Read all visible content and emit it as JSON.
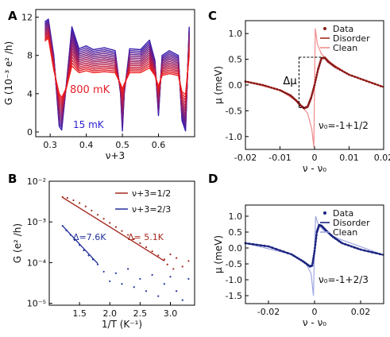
{
  "chart_data": [
    {
      "panel": "A",
      "type": "line",
      "xlabel": "ν+3",
      "ylabel": "G (10⁻³ e² /h)",
      "xlim": [
        0.26,
        0.7
      ],
      "ylim": [
        -0.5,
        12.8
      ],
      "xticks": [
        0.3,
        0.4,
        0.5,
        0.6
      ],
      "xtick_labels": [
        "0.3",
        "0.4",
        "0.5",
        "0.6"
      ],
      "yticks": [
        0,
        4,
        8,
        12
      ],
      "ytick_labels": [
        "0",
        "4",
        "8",
        "12"
      ],
      "annotations": [
        {
          "text": "800 mK",
          "color": "#e8202a"
        },
        {
          "text": "15 mK",
          "color": "#2b1fd1"
        }
      ],
      "colors": {
        "cold": "#3a1fb0",
        "hot": "#ee1c1c"
      },
      "series": [
        {
          "name": "15 mK",
          "x": [
            0.285,
            0.295,
            0.31,
            0.325,
            0.332,
            0.345,
            0.36,
            0.38,
            0.4,
            0.42,
            0.45,
            0.48,
            0.495,
            0.5,
            0.505,
            0.52,
            0.55,
            0.575,
            0.59,
            0.6,
            0.61,
            0.63,
            0.655,
            0.665,
            0.675,
            0.685
          ],
          "y": [
            11.5,
            11.8,
            8.0,
            0.6,
            0.2,
            5.0,
            11.0,
            8.7,
            9.0,
            8.6,
            8.8,
            8.5,
            4.0,
            0.1,
            4.0,
            8.7,
            8.6,
            9.6,
            7.5,
            1.7,
            8.0,
            8.5,
            8.0,
            1.2,
            0.1,
            11.0
          ]
        },
        {
          "name": "800 mK",
          "x": [
            0.285,
            0.295,
            0.31,
            0.325,
            0.332,
            0.345,
            0.36,
            0.38,
            0.4,
            0.42,
            0.45,
            0.48,
            0.495,
            0.5,
            0.505,
            0.52,
            0.55,
            0.575,
            0.59,
            0.6,
            0.61,
            0.63,
            0.655,
            0.665,
            0.675,
            0.685
          ],
          "y": [
            9.5,
            9.8,
            6.5,
            4.0,
            3.6,
            4.6,
            6.9,
            6.2,
            6.4,
            6.2,
            6.3,
            6.2,
            5.0,
            4.5,
            5.0,
            6.2,
            6.2,
            6.7,
            5.9,
            4.8,
            5.9,
            6.1,
            5.9,
            4.2,
            3.9,
            8.0
          ]
        }
      ],
      "n_curves": 14
    },
    {
      "panel": "B",
      "type": "scatter",
      "xlabel": "1/T (K⁻¹)",
      "ylabel": "G (e² /h)",
      "yscale": "log",
      "xlim": [
        1.0,
        3.4
      ],
      "ylim": [
        9e-06,
        0.01
      ],
      "xticks": [
        1.5,
        2.0,
        2.5,
        3.0
      ],
      "xtick_labels": [
        "1.5",
        "2.0",
        "2.5",
        "3.0"
      ],
      "yticks": [
        1e-05,
        0.0001,
        0.001,
        0.01
      ],
      "ytick_labels": [
        "10⁻⁵",
        "10⁻⁴",
        "10⁻³",
        "10⁻²"
      ],
      "legend_position": "top-right",
      "legend": [
        {
          "label": "ν+3=1/2",
          "color": "#a52a20"
        },
        {
          "label": "ν+3=2/3",
          "color": "#24319a"
        }
      ],
      "fit_labels": [
        {
          "text": "Δ=7.6K",
          "color": "#24319a"
        },
        {
          "text": "Δ= 5.1K",
          "color": "#a52a20"
        }
      ],
      "series": [
        {
          "name": "ν+3=1/2",
          "fit": {
            "x": [
              1.22,
              2.9
            ],
            "y": [
              0.004,
              0.00011
            ]
          },
          "x": [
            1.22,
            1.3,
            1.4,
            1.5,
            1.6,
            1.7,
            1.8,
            1.9,
            2.0,
            2.1,
            2.2,
            2.3,
            2.4,
            2.5,
            2.6,
            2.7,
            2.8,
            2.9,
            2.95,
            3.0,
            3.05,
            3.1,
            3.2,
            3.3
          ],
          "y": [
            0.0041,
            0.0039,
            0.0034,
            0.0029,
            0.0024,
            0.0019,
            0.0015,
            0.0012,
            0.00095,
            0.00075,
            0.0006,
            0.00048,
            0.00038,
            0.0003,
            0.00024,
            0.00019,
            0.00015,
            0.00012,
            9e-05,
            0.00016,
            7e-05,
            0.00013,
            8e-05,
            0.00011
          ]
        },
        {
          "name": "ν+3=2/3",
          "fit": {
            "x": [
              1.22,
              1.8
            ],
            "y": [
              0.0008,
              9.5e-05
            ]
          },
          "x": [
            1.22,
            1.28,
            1.35,
            1.42,
            1.5,
            1.57,
            1.65,
            1.72,
            1.8,
            1.9,
            2.0,
            2.1,
            2.2,
            2.3,
            2.4,
            2.5,
            2.6,
            2.7,
            2.8,
            2.9,
            3.0,
            3.1,
            3.2,
            3.3
          ],
          "y": [
            0.0008,
            0.00062,
            0.00048,
            0.00036,
            0.00027,
            0.0002,
            0.00015,
            0.00012,
            9e-05,
            6e-05,
            3.5e-05,
            5.5e-05,
            3e-05,
            7e-05,
            2.5e-05,
            4e-05,
            2e-05,
            5e-05,
            1.5e-05,
            3e-05,
            4.5e-05,
            2e-05,
            1.2e-05,
            4e-05
          ]
        }
      ]
    },
    {
      "panel": "C",
      "type": "line",
      "xlabel": "ν - ν₀",
      "ylabel": "μ (meV)",
      "xlim": [
        -0.02,
        0.02
      ],
      "ylim": [
        -1.25,
        1.25
      ],
      "xticks": [
        -0.02,
        -0.01,
        0,
        0.01,
        0.02
      ],
      "xtick_labels": [
        "-0.02",
        "-0.01",
        "0",
        "0.01",
        "0.02"
      ],
      "yticks": [
        -1.0,
        -0.5,
        0.0,
        0.5,
        1.0
      ],
      "ytick_labels": [
        "-1.0",
        "-0.5",
        "0.0",
        "0.5",
        "1.0"
      ],
      "legend_position": "top-right",
      "legend": [
        {
          "label": "Data",
          "color": "#8b1a1a"
        },
        {
          "label": "Disorder",
          "color": "#a52a20"
        },
        {
          "label": "Clean",
          "color": "#f08a8a"
        }
      ],
      "annotation": "Δμ",
      "nu0_label": "ν₀=-1+1/2",
      "series": [
        {
          "name": "Disorder",
          "x": [
            -0.02,
            -0.015,
            -0.01,
            -0.007,
            -0.005,
            -0.004,
            -0.003,
            -0.002,
            -0.001,
            0.0,
            0.001,
            0.002,
            0.003,
            0.004,
            0.006,
            0.01,
            0.015,
            0.02
          ],
          "y": [
            0.07,
            0.0,
            -0.1,
            -0.2,
            -0.32,
            -0.4,
            -0.45,
            -0.42,
            -0.25,
            0.0,
            0.3,
            0.52,
            0.53,
            0.45,
            0.35,
            0.2,
            0.08,
            -0.04
          ]
        },
        {
          "name": "Clean",
          "x": [
            -0.02,
            -0.01,
            -0.005,
            -0.002,
            -0.0008,
            -0.0002,
            0.0002,
            0.0008,
            0.002,
            0.005,
            0.01,
            0.02
          ],
          "y": [
            0.07,
            -0.1,
            -0.32,
            -0.55,
            -0.85,
            -1.2,
            1.1,
            0.8,
            0.6,
            0.42,
            0.2,
            -0.04
          ]
        }
      ],
      "bracket": {
        "x1": -0.0045,
        "x2": 0.0025,
        "y_top": 0.54,
        "y_bottom": -0.44
      }
    },
    {
      "panel": "D",
      "type": "line",
      "xlabel": "ν - ν₀",
      "ylabel": "μ (meV)",
      "xlim": [
        -0.03,
        0.03
      ],
      "ylim": [
        -1.75,
        1.35
      ],
      "xticks": [
        -0.02,
        0,
        0.02
      ],
      "xtick_labels": [
        "-0.02",
        "0",
        "0.02"
      ],
      "yticks": [
        -1.5,
        -1.0,
        -0.5,
        0.0,
        0.5,
        1.0
      ],
      "ytick_labels": [
        "-1.5",
        "-1.0",
        "-0.5",
        "0.0",
        "0.5",
        "1.0"
      ],
      "legend_position": "top-right",
      "legend": [
        {
          "label": "Data",
          "color": "#1a237e"
        },
        {
          "label": "Disorder",
          "color": "#1a237e"
        },
        {
          "label": "Clean",
          "color": "#9fa6e0"
        }
      ],
      "nu0_label": "ν₀=-1+2/3",
      "series": [
        {
          "name": "Disorder",
          "x": [
            -0.03,
            -0.02,
            -0.01,
            -0.005,
            -0.002,
            -0.001,
            0.0,
            0.001,
            0.002,
            0.003,
            0.005,
            0.008,
            0.012,
            0.02,
            0.03
          ],
          "y": [
            0.15,
            0.05,
            -0.2,
            -0.42,
            -0.58,
            -0.55,
            -0.1,
            0.5,
            0.72,
            0.7,
            0.55,
            0.35,
            0.15,
            -0.05,
            -0.22
          ]
        },
        {
          "name": "Clean",
          "x": [
            -0.03,
            -0.01,
            -0.004,
            -0.0015,
            -0.0005,
            0.0,
            0.0005,
            0.0015,
            0.004,
            0.01,
            0.03
          ],
          "y": [
            0.15,
            -0.2,
            -0.45,
            -0.8,
            -1.5,
            0.0,
            1.0,
            0.75,
            0.55,
            0.3,
            -0.22
          ]
        }
      ]
    }
  ]
}
